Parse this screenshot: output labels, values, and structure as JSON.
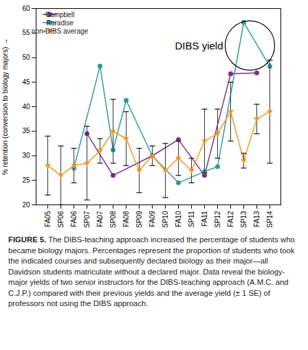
{
  "chart_data": {
    "type": "line",
    "y_label": "% retention (conversion to biology majors)",
    "categories": [
      "FA05",
      "SP06",
      "FA06",
      "SP07",
      "FA07",
      "SP08",
      "FA08",
      "SP09",
      "FA09",
      "SP10",
      "FA10",
      "SP11",
      "FA11",
      "SP12",
      "FA12",
      "SP13",
      "FA13",
      "SP14"
    ],
    "series": [
      {
        "name": "Campbell",
        "color": "#7b2d8e",
        "marker": "circle",
        "values": [
          null,
          null,
          null,
          34.5,
          null,
          26,
          null,
          null,
          30,
          null,
          33.3,
          null,
          26,
          null,
          46.7,
          null,
          46.9,
          null
        ]
      },
      {
        "name": "Paradise",
        "color": "#2a9d9a",
        "marker": "circle",
        "values": [
          null,
          null,
          27.5,
          null,
          48.3,
          31.2,
          41.3,
          null,
          30,
          null,
          24.5,
          null,
          26.8,
          27.8,
          null,
          57.2,
          null,
          48.2
        ]
      },
      {
        "name": "non-DIBS average",
        "color": "#f7941d",
        "marker": "triangle-down",
        "values": [
          28,
          26,
          28,
          28.5,
          31,
          35,
          33.5,
          27,
          30,
          27,
          29.5,
          27,
          33,
          34.5,
          39,
          29,
          37.5,
          39
        ],
        "errors": [
          6,
          6,
          3.5,
          7.5,
          2.5,
          6.5,
          5.5,
          4.5,
          2,
          5.5,
          3.5,
          2.5,
          6.5,
          5,
          6,
          1.5,
          3,
          10.5
        ]
      }
    ],
    "ylim": [
      20,
      60
    ],
    "yticks": [
      20,
      25,
      30,
      35,
      40,
      45,
      50,
      55,
      60
    ],
    "legend": "top-left",
    "annotations": [
      {
        "text": "DIBS yield"
      }
    ],
    "caption": {
      "label": "FIGURE 5.",
      "text": "The DIBS-teaching approach increased the percentage of students who became biology majors. Percentages represent the proportion of students who took the indicated courses and subsequently declared biology as their major—all Davidson students matriculate without a declared major. Data reveal the biology-major yields of two senior instructors for the DIBS-teaching approach (A.M.C. and C.J.P.) compared with their previous yields and the average yield (± 1 SE) of professors not using the DIBS approach."
    }
  }
}
